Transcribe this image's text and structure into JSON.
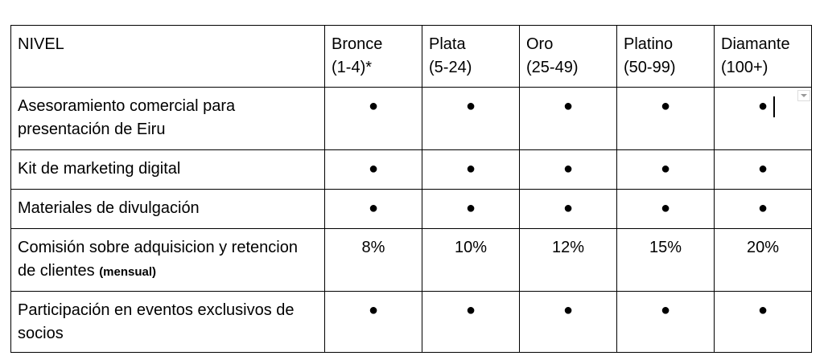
{
  "table": {
    "header": {
      "title": "NIVEL",
      "levels": [
        {
          "name": "Bronce",
          "range": "(1-4)*"
        },
        {
          "name": "Plata",
          "range": "(5-24)"
        },
        {
          "name": "Oro",
          "range": "(25-49)"
        },
        {
          "name": "Platino",
          "range": "(50-99)"
        },
        {
          "name": "Diamante",
          "range": "(100+)"
        }
      ]
    },
    "rows": [
      {
        "label": "Asesoramiento comercial para presentación de Eiru",
        "cells": [
          "●",
          "●",
          "●",
          "●",
          "●"
        ]
      },
      {
        "label": "Kit de marketing digital",
        "cells": [
          "●",
          "●",
          "●",
          "●",
          "●"
        ]
      },
      {
        "label": "Materiales de divulgación",
        "cells": [
          "●",
          "●",
          "●",
          "●",
          "●"
        ]
      },
      {
        "label": "Comisión sobre adquisicion y retencion de clientes",
        "note": "(mensual)",
        "cells": [
          "8%",
          "10%",
          "12%",
          "15%",
          "20%"
        ]
      },
      {
        "label": "Participación en eventos exclusivos de socios",
        "cells": [
          "●",
          "●",
          "●",
          "●",
          "●"
        ]
      }
    ]
  }
}
